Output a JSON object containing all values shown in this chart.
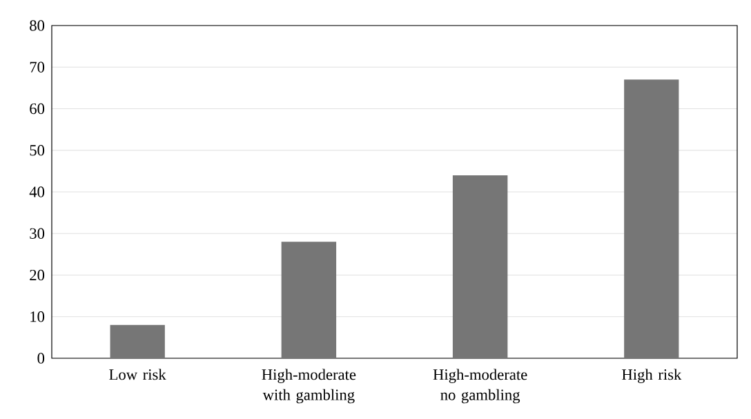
{
  "chart_data": {
    "type": "bar",
    "categories": [
      "Low risk",
      "High-moderate with gambling",
      "High-moderate no gambling",
      "High risk"
    ],
    "values": [
      8,
      28,
      44,
      67
    ],
    "color": "#767676",
    "ylim": [
      0,
      80
    ],
    "yticks": [
      0,
      10,
      20,
      30,
      40,
      50,
      60,
      70,
      80
    ],
    "grid": "y"
  }
}
